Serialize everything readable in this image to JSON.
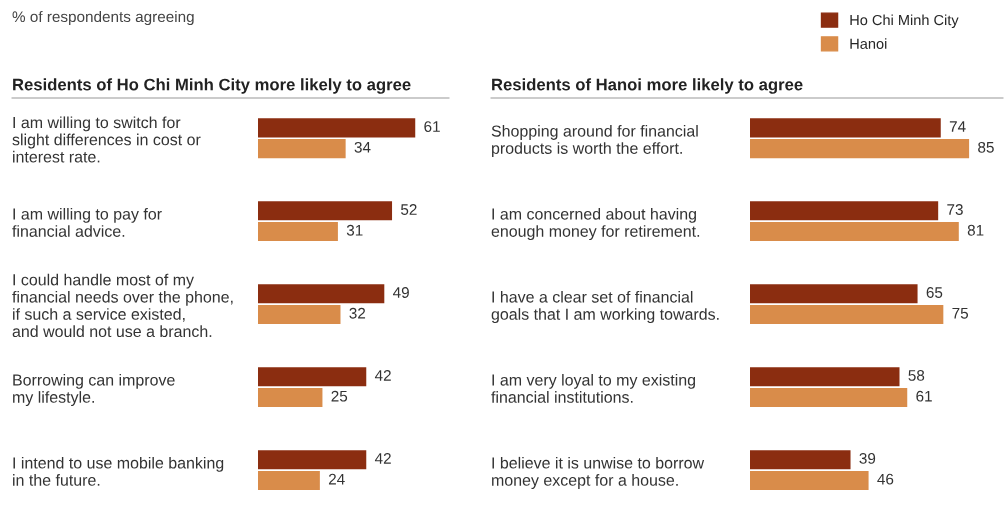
{
  "chart_data": [
    {
      "type": "bar",
      "orientation": "horizontal",
      "relative": false,
      "data_labels": true,
      "legend": false,
      "grid": false,
      "title": "Residents of Ho Chi Minh City more likely to agree",
      "annotations": [
        "% of respondents agreeing"
      ],
      "categories": [
        "I am willing to switch for\nslight differences in cost or\ninterest rate.",
        "I am willing to pay for\nfinancial advice.",
        "I could handle most of my\nfinancial needs over the phone,\nif such a service existed,\nand would not use a branch.",
        "Borrowing can improve\nmy lifestyle.",
        "I intend to use mobile banking\nin the future."
      ],
      "series": [
        {
          "color": "#8b2d10",
          "values": [
            61,
            52,
            49,
            42,
            42
          ]
        },
        {
          "color": "#d98c4a",
          "values": [
            34,
            31,
            32,
            25,
            24
          ]
        }
      ]
    },
    {
      "type": "bar",
      "orientation": "horizontal",
      "relative": false,
      "data_labels": true,
      "legend": "top right",
      "grid": false,
      "title": "Residents of Hanoi more likely to agree",
      "categories": [
        "Shopping around for financial\nproducts is worth the effort.",
        "I am concerned about having\nenough money for retirement.",
        "I have a clear set of financial\ngoals that I am working towards.",
        "I am very loyal to my existing\nfinancial institutions.",
        "I believe it is unwise to borrow\nmoney except for a house."
      ],
      "series": [
        {
          "name": "Ho Chi Minh City",
          "color": "#8b2d10",
          "values": [
            74,
            73,
            65,
            58,
            39
          ]
        },
        {
          "name": "Hanoi",
          "color": "#d98c4a",
          "values": [
            85,
            81,
            75,
            61,
            46
          ]
        }
      ]
    }
  ]
}
